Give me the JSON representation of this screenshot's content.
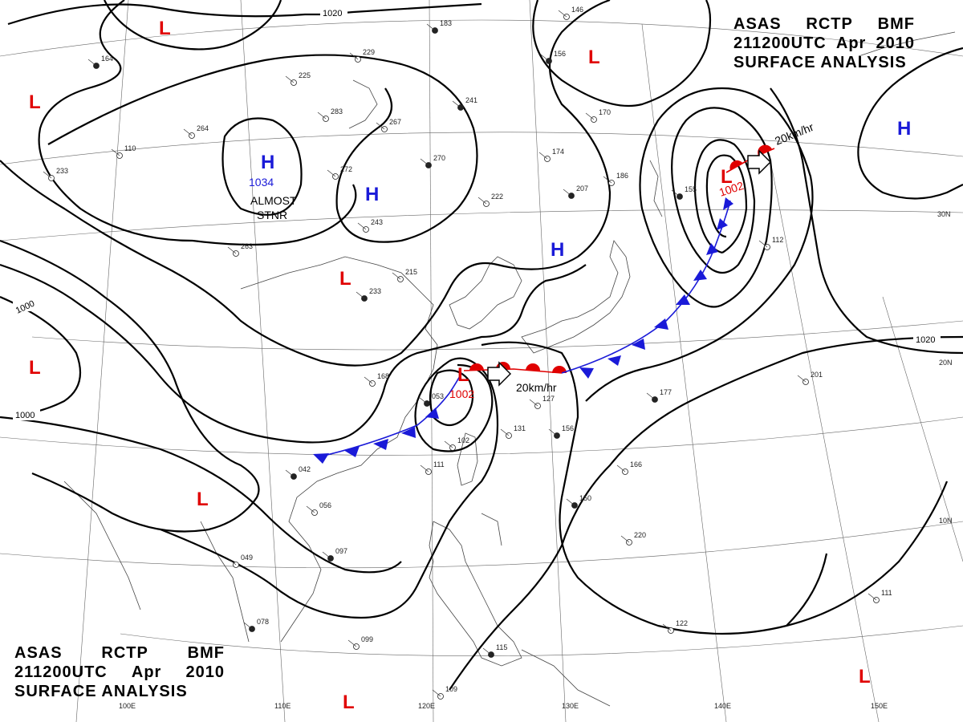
{
  "header": {
    "line1": [
      "ASAS",
      "RCTP",
      "BMF"
    ],
    "line2": [
      "211200UTC",
      "Apr",
      "2010"
    ],
    "line3": "SURFACE ANALYSIS"
  },
  "pressure_systems": [
    {
      "id": "h-mongolia",
      "type": "H",
      "value": "1034",
      "note": "ALMOST STNR"
    },
    {
      "id": "h-yellow-sea",
      "type": "H",
      "value": ""
    },
    {
      "id": "h-japan-sea",
      "type": "H",
      "value": ""
    },
    {
      "id": "h-east",
      "type": "H",
      "value": ""
    },
    {
      "id": "l-east-china-sea",
      "type": "L",
      "value": "1002",
      "motion": "20km/hr"
    },
    {
      "id": "l-north-pacific",
      "type": "L",
      "value": "1002",
      "motion": "20km/hr"
    },
    {
      "id": "l-nw-corner",
      "type": "L",
      "value": ""
    },
    {
      "id": "l-north",
      "type": "L",
      "value": ""
    },
    {
      "id": "l-kamchatka",
      "type": "L",
      "value": ""
    },
    {
      "id": "l-west",
      "type": "L",
      "value": ""
    },
    {
      "id": "l-sichuan",
      "type": "L",
      "value": ""
    },
    {
      "id": "l-bay-of-bengal",
      "type": "L",
      "value": ""
    },
    {
      "id": "l-south",
      "type": "L",
      "value": ""
    },
    {
      "id": "l-southeast",
      "type": "L",
      "value": ""
    }
  ],
  "isobar_labels": [
    "1020",
    "1000",
    "1000",
    "1020"
  ],
  "grid_labels": {
    "lon": [
      "100E",
      "110E",
      "120E",
      "130E",
      "140E",
      "150E"
    ],
    "lat": [
      "30N",
      "20N",
      "10N"
    ]
  },
  "station_samples": [
    "183",
    "229",
    "225",
    "241",
    "267",
    "283",
    "270",
    "174",
    "186",
    "207",
    "222",
    "243",
    "233",
    "215",
    "168",
    "053",
    "102",
    "111",
    "156",
    "131",
    "127",
    "150",
    "166",
    "220",
    "177",
    "201",
    "112",
    "097",
    "099",
    "109",
    "115",
    "122",
    "111",
    "042",
    "056",
    "049",
    "078",
    "263",
    "110",
    "164",
    "233",
    "264",
    "155",
    "170",
    "146",
    "156",
    "272"
  ],
  "colors": {
    "high": "#1a1ad8",
    "low": "#e00000",
    "warm_front": "#e00000",
    "cold_front": "#1a1ad8",
    "isobar": "#000000"
  }
}
